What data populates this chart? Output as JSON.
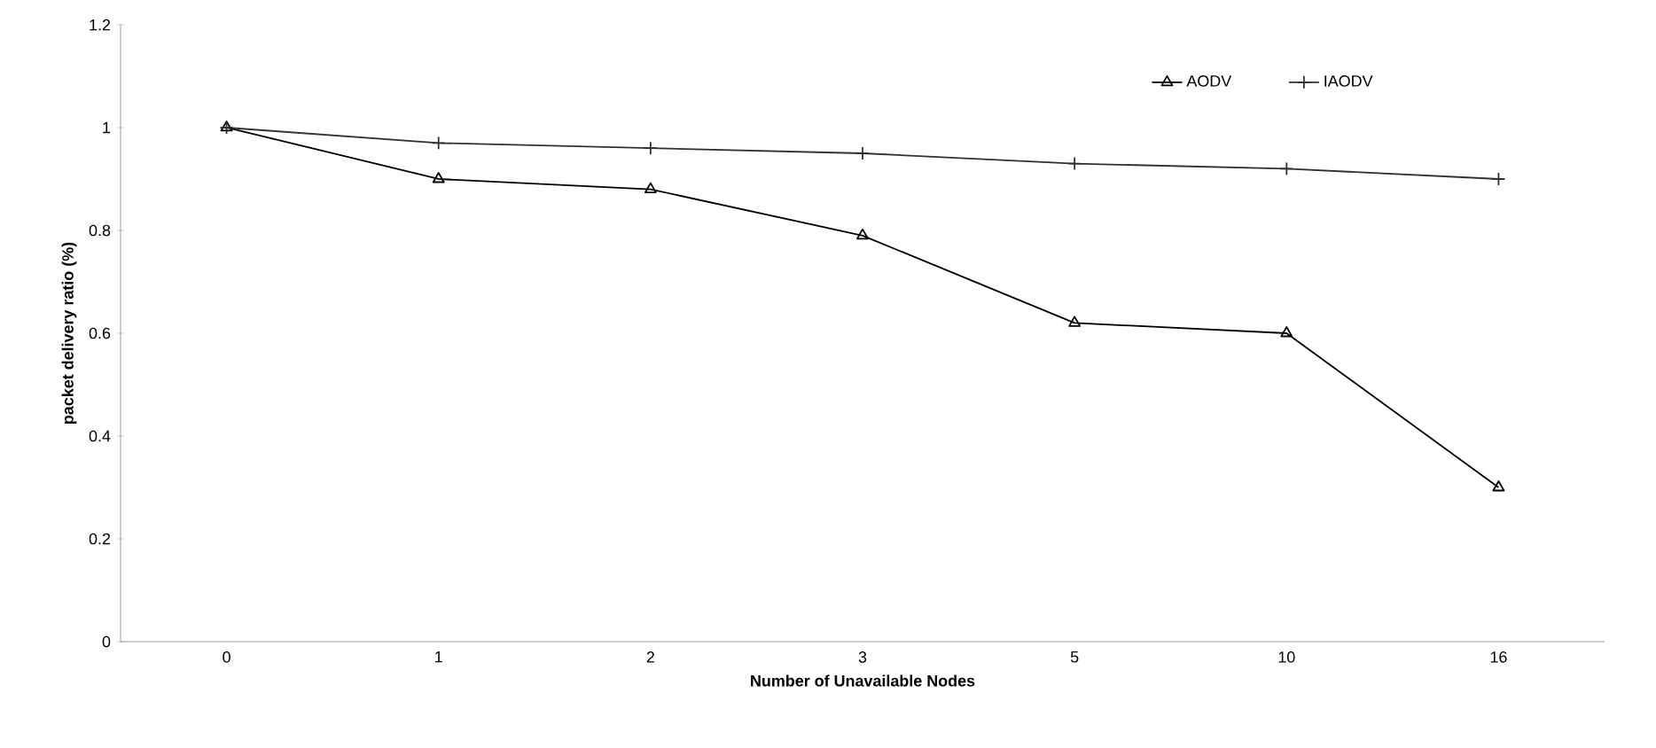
{
  "chart_data": {
    "type": "line",
    "xlabel": "Number of Unavailable Nodes",
    "ylabel": "packet delivery ratio (%)",
    "categories": [
      "0",
      "1",
      "2",
      "3",
      "5",
      "10",
      "16"
    ],
    "series": [
      {
        "name": "AODV",
        "color": "#000000",
        "marker": "triangle",
        "values": [
          1.0,
          0.9,
          0.88,
          0.79,
          0.62,
          0.6,
          0.3
        ]
      },
      {
        "name": "IAODV",
        "color": "#303030",
        "marker": "cross",
        "values": [
          1.0,
          0.97,
          0.96,
          0.95,
          0.93,
          0.92,
          0.9
        ]
      }
    ],
    "ylim": [
      0,
      1.2
    ],
    "yticks": [
      0,
      0.2,
      0.4,
      0.6,
      0.8,
      1,
      1.2
    ],
    "grid": false,
    "legend": "top right",
    "line_style": "solid"
  }
}
